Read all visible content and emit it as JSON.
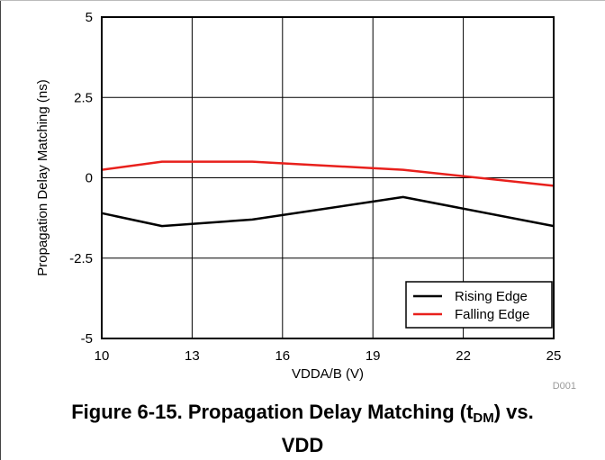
{
  "chart_data": {
    "type": "line",
    "title": "",
    "xlabel": "VDDA/B (V)",
    "ylabel": "Propagation Delay Matching (ns)",
    "xlim": [
      10,
      25
    ],
    "ylim": [
      -5,
      5
    ],
    "xticks": [
      10,
      13,
      16,
      19,
      22,
      25
    ],
    "yticks": [
      -5,
      -2.5,
      0,
      2.5,
      5
    ],
    "ytick_labels": [
      "-5",
      "-2.5",
      "0",
      "2.5",
      "5"
    ],
    "grid": true,
    "legend_position": "bottom-right",
    "series": [
      {
        "name": "Rising Edge",
        "color": "#000000",
        "x": [
          10,
          12,
          15,
          20,
          25
        ],
        "y": [
          -1.1,
          -1.5,
          -1.3,
          -0.6,
          -1.5
        ]
      },
      {
        "name": "Falling Edge",
        "color": "#e8201c",
        "x": [
          10,
          12,
          15,
          20,
          25
        ],
        "y": [
          0.25,
          0.5,
          0.5,
          0.25,
          -0.25
        ]
      }
    ],
    "watermark": "D001"
  },
  "caption": {
    "prefix": "Figure 6-15. Propagation Delay Matching (t",
    "subscript": "DM",
    "suffix": ") vs.",
    "line2": "VDD"
  }
}
